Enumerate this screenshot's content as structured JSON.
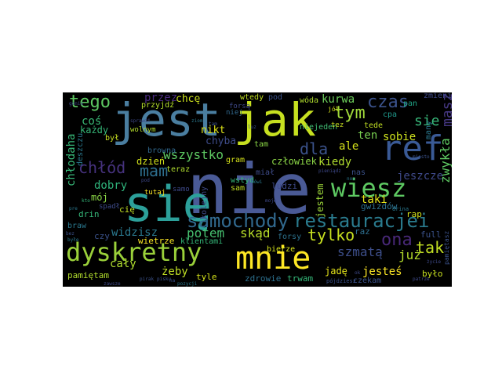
{
  "background": "#000000",
  "words": [
    {
      "text": "nie",
      "color": "#4a5a96"
    },
    {
      "text": "jest",
      "color": "#4a7ea0"
    },
    {
      "text": "jak",
      "color": "#c7e020"
    },
    {
      "text": "się",
      "color": "#2ca09a"
    },
    {
      "text": "ref",
      "color": "#3a5a96"
    },
    {
      "text": "wiesz",
      "color": "#5ec962"
    },
    {
      "text": "dyskretny",
      "color": "#9ad03a"
    },
    {
      "text": "mnie",
      "color": "#fde725"
    },
    {
      "text": "samochody",
      "color": "#31698e"
    },
    {
      "text": "restauracjei",
      "color": "#2a7b8e"
    },
    {
      "text": "tego",
      "color": "#5ec962"
    },
    {
      "text": "tym",
      "color": "#a0d83a"
    },
    {
      "text": "czas",
      "color": "#3b528b"
    },
    {
      "text": "masz",
      "color": "#453781"
    },
    {
      "text": "sie",
      "color": "#38b87a"
    },
    {
      "text": "mam",
      "color": "#2e6f8e"
    },
    {
      "text": "chłód",
      "color": "#46327e"
    },
    {
      "text": "dla",
      "color": "#3b528b"
    },
    {
      "text": "wszystko",
      "color": "#5ec962"
    },
    {
      "text": "ona",
      "color": "#482878"
    },
    {
      "text": "tak",
      "color": "#c2df23"
    },
    {
      "text": "już",
      "color": "#b5de2b"
    },
    {
      "text": "tylko",
      "color": "#c8e020"
    },
    {
      "text": "potem",
      "color": "#46c06f"
    },
    {
      "text": "skąd",
      "color": "#b8de29"
    },
    {
      "text": "szmatą",
      "color": "#3d4e8a"
    },
    {
      "text": "jeszcze",
      "color": "#3e4989"
    },
    {
      "text": "zwykła",
      "color": "#5ec962"
    },
    {
      "text": "przez",
      "color": "#4a2a7e"
    },
    {
      "text": "chłodaha",
      "color": "#37b878"
    },
    {
      "text": "dobry",
      "color": "#2fb47c"
    },
    {
      "text": "widzisz",
      "color": "#2a788e"
    },
    {
      "text": "cały",
      "color": "#b0dd2f"
    },
    {
      "text": "żeby",
      "color": "#c0df25"
    },
    {
      "text": "kurwa",
      "color": "#6ccd5a"
    },
    {
      "text": "ten",
      "color": "#79d151"
    },
    {
      "text": "sobie",
      "color": "#cde11d"
    },
    {
      "text": "ale",
      "color": "#d5e21a"
    },
    {
      "text": "kiedy",
      "color": "#b0dd2f"
    },
    {
      "text": "człowiek",
      "color": "#8bd646"
    },
    {
      "text": "taki",
      "color": "#e5e419"
    },
    {
      "text": "jesteś",
      "color": "#fde725"
    },
    {
      "text": "jestem",
      "color": "#9fda3a"
    },
    {
      "text": "chcę",
      "color": "#cde11d"
    },
    {
      "text": "nikt",
      "color": "#dde318"
    },
    {
      "text": "chyba",
      "color": "#3e4c8a"
    },
    {
      "text": "dzień",
      "color": "#d2e21b"
    },
    {
      "text": "coś",
      "color": "#3aba76"
    },
    {
      "text": "każdy",
      "color": "#36b677"
    },
    {
      "text": "mój",
      "color": "#8bd646"
    },
    {
      "text": "pamiętam",
      "color": "#b2dd2d"
    },
    {
      "text": "tyle",
      "color": "#d5e21a"
    },
    {
      "text": "zdrowie",
      "color": "#2d708e"
    },
    {
      "text": "trwam",
      "color": "#35b779"
    },
    {
      "text": "czekam",
      "color": "#3b528b"
    },
    {
      "text": "jadę",
      "color": "#e5e419"
    },
    {
      "text": "było",
      "color": "#c8e020"
    },
    {
      "text": "rap",
      "color": "#d5e21a"
    },
    {
      "text": "full",
      "color": "#3b528b"
    },
    {
      "text": "raz",
      "color": "#2e6e8e"
    },
    {
      "text": "forsy",
      "color": "#2c728e"
    },
    {
      "text": "ludzi",
      "color": "#3e4a89"
    },
    {
      "text": "gwizdów",
      "color": "#2d708e"
    },
    {
      "text": "wstyd",
      "color": "#35b779"
    },
    {
      "text": "niejeden",
      "color": "#3fbc73"
    },
    {
      "text": "wóda",
      "color": "#b0dd2f"
    },
    {
      "text": "pan",
      "color": "#20a486"
    },
    {
      "text": "tede",
      "color": "#c2df23"
    },
    {
      "text": "zmienia",
      "color": "#3e4989"
    },
    {
      "text": "many",
      "color": "#2a788e"
    },
    {
      "text": "cpa",
      "color": "#1f988b"
    },
    {
      "text": "nas",
      "color": "#3b528b"
    },
    {
      "text": "teraz",
      "color": "#b0dd2f"
    },
    {
      "text": "browna",
      "color": "#31688e"
    },
    {
      "text": "wolnym",
      "color": "#b5de2b"
    },
    {
      "text": "spadł",
      "color": "#3e4c8a"
    },
    {
      "text": "cię",
      "color": "#c2df23"
    },
    {
      "text": "czy",
      "color": "#3b528b"
    },
    {
      "text": "braw",
      "color": "#2a788e"
    },
    {
      "text": "drin",
      "color": "#35b779"
    },
    {
      "text": "deszczu",
      "color": "#2a788e"
    },
    {
      "text": "był",
      "color": "#c8e020"
    },
    {
      "text": "wietrze",
      "color": "#fde725"
    },
    {
      "text": "klientami",
      "color": "#35b779"
    },
    {
      "text": "kolejny",
      "color": "#3e4989"
    },
    {
      "text": "sam",
      "color": "#c2df23"
    },
    {
      "text": "miał",
      "color": "#3e4c8a"
    },
    {
      "text": "wtedy",
      "color": "#c2df23"
    },
    {
      "text": "pod",
      "color": "#3b528b"
    },
    {
      "text": "tam",
      "color": "#8bd646"
    },
    {
      "text": "przyjdź",
      "color": "#b5de2b"
    },
    {
      "text": "gram",
      "color": "#d5e21a"
    },
    {
      "text": "bierze",
      "color": "#d5e21a"
    },
    {
      "text": "tutaj",
      "color": "#fde725"
    },
    {
      "text": "samo",
      "color": "#3e4989"
    },
    {
      "text": "tez",
      "color": "#c8e020"
    },
    {
      "text": "niej",
      "color": "#31688e"
    },
    {
      "text": "forsą",
      "color": "#3e4989"
    },
    {
      "text": "jól",
      "color": "#d5e21a"
    },
    {
      "text": "pójdziesz",
      "color": "#3b528b"
    },
    {
      "text": "drina",
      "color": "#2a788e"
    },
    {
      "text": "pamiętasz",
      "color": "#3b528b"
    },
    {
      "text": "patrze",
      "color": "#3e4989"
    },
    {
      "text": "pod",
      "color": "#3e4989"
    },
    {
      "text": "pirak",
      "color": "#3b528b"
    },
    {
      "text": "pozycji",
      "color": "#2a788e"
    },
    {
      "text": "zawsze",
      "color": "#3e4989"
    },
    {
      "text": "pisku",
      "color": "#3b528b"
    },
    {
      "text": "bez",
      "color": "#3b528b"
    },
    {
      "text": "kto",
      "color": "#35b779"
    },
    {
      "text": "byłe",
      "color": "#2a788e"
    },
    {
      "text": "tam",
      "color": "#3b528b"
    },
    {
      "text": "ziom",
      "color": "#2a788e"
    },
    {
      "text": "luz",
      "color": "#3b528b"
    },
    {
      "text": "ok",
      "color": "#3e4989"
    },
    {
      "text": "pre",
      "color": "#2a788e"
    },
    {
      "text": "na",
      "color": "#3b528b"
    },
    {
      "text": "gonie",
      "color": "#3e4989"
    },
    {
      "text": "sprawdź",
      "color": "#3e4989"
    },
    {
      "text": "miasto",
      "color": "#3b528b"
    },
    {
      "text": "noc",
      "color": "#2a788e"
    },
    {
      "text": "pieniądz",
      "color": "#3e4989"
    },
    {
      "text": "życie",
      "color": "#3e4989"
    },
    {
      "text": "mówi",
      "color": "#2a788e"
    },
    {
      "text": "moje",
      "color": "#3e4989"
    },
    {
      "text": "chce",
      "color": "#3b528b"
    }
  ]
}
